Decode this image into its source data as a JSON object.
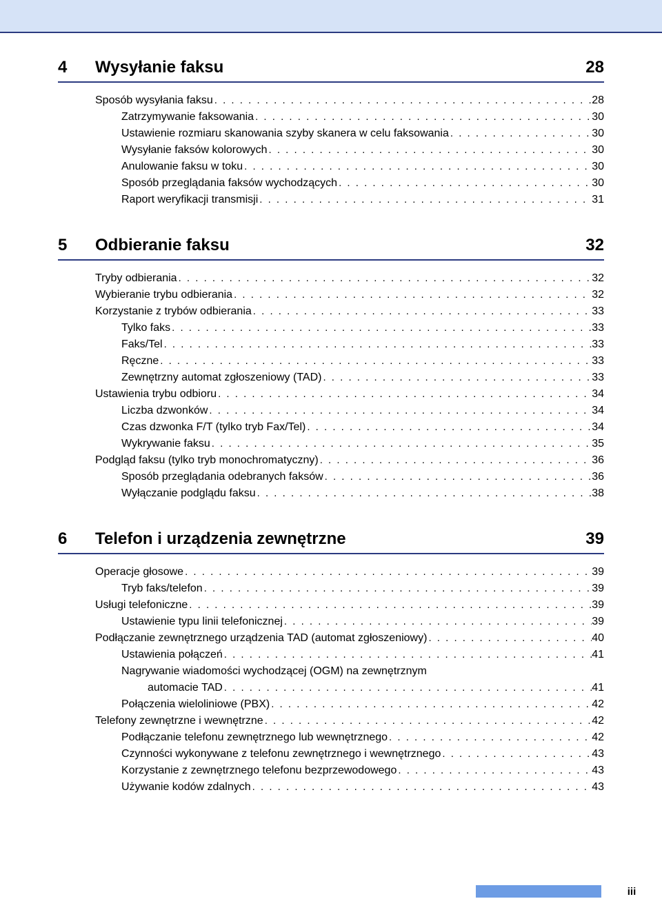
{
  "page_number": "iii",
  "sections": [
    {
      "number": "4",
      "title": "Wysyłanie faksu",
      "page": "28",
      "entries": [
        {
          "level": 0,
          "text": "Sposób wysyłania faksu",
          "page": "28"
        },
        {
          "level": 1,
          "text": "Zatrzymywanie faksowania",
          "page": "30"
        },
        {
          "level": 1,
          "text": "Ustawienie rozmiaru skanowania szyby skanera w celu faksowania",
          "page": "30"
        },
        {
          "level": 1,
          "text": "Wysyłanie faksów kolorowych",
          "page": "30"
        },
        {
          "level": 1,
          "text": "Anulowanie faksu w toku",
          "page": "30"
        },
        {
          "level": 1,
          "text": "Sposób przeglądania faksów wychodzących",
          "page": "30"
        },
        {
          "level": 1,
          "text": "Raport weryfikacji transmisji",
          "page": "31"
        }
      ]
    },
    {
      "number": "5",
      "title": "Odbieranie faksu",
      "page": "32",
      "entries": [
        {
          "level": 0,
          "text": "Tryby odbierania",
          "page": "32"
        },
        {
          "level": 0,
          "text": "Wybieranie trybu odbierania",
          "page": "32"
        },
        {
          "level": 0,
          "text": "Korzystanie z trybów odbierania",
          "page": "33"
        },
        {
          "level": 1,
          "text": "Tylko faks",
          "page": "33"
        },
        {
          "level": 1,
          "text": "Faks/Tel",
          "page": "33"
        },
        {
          "level": 1,
          "text": "Ręczne",
          "page": "33"
        },
        {
          "level": 1,
          "text": "Zewnętrzny automat zgłoszeniowy (TAD)",
          "page": "33"
        },
        {
          "level": 0,
          "text": "Ustawienia trybu odbioru",
          "page": "34"
        },
        {
          "level": 1,
          "text": "Liczba dzwonków",
          "page": "34"
        },
        {
          "level": 1,
          "text": "Czas dzwonka F/T (tylko tryb Fax/Tel)",
          "page": "34"
        },
        {
          "level": 1,
          "text": "Wykrywanie faksu",
          "page": "35"
        },
        {
          "level": 0,
          "text": "Podgląd faksu (tylko tryb monochromatyczny)",
          "page": "36"
        },
        {
          "level": 1,
          "text": "Sposób przeglądania odebranych faksów",
          "page": "36"
        },
        {
          "level": 1,
          "text": "Wyłączanie podglądu faksu",
          "page": "38"
        }
      ]
    },
    {
      "number": "6",
      "title": "Telefon i urządzenia zewnętrzne",
      "page": "39",
      "entries": [
        {
          "level": 0,
          "text": "Operacje głosowe",
          "page": "39"
        },
        {
          "level": 1,
          "text": "Tryb faks/telefon",
          "page": "39"
        },
        {
          "level": 0,
          "text": "Usługi telefoniczne",
          "page": "39"
        },
        {
          "level": 1,
          "text": "Ustawienie typu linii telefonicznej",
          "page": "39"
        },
        {
          "level": 0,
          "text": "Podłączanie zewnętrznego urządzenia TAD (automat zgłoszeniowy)",
          "page": "40"
        },
        {
          "level": 1,
          "text": "Ustawienia połączeń",
          "page": "41"
        },
        {
          "level": 1,
          "text": "Nagrywanie wiadomości wychodzącej (OGM) na zewnętrznym",
          "page": null
        },
        {
          "level": 2,
          "text": "automacie TAD",
          "page": "41"
        },
        {
          "level": 1,
          "text": "Połączenia wieloliniowe (PBX)",
          "page": "42"
        },
        {
          "level": 0,
          "text": "Telefony zewnętrzne i wewnętrzne",
          "page": "42"
        },
        {
          "level": 1,
          "text": "Podłączanie telefonu zewnętrznego lub wewnętrznego",
          "page": "42"
        },
        {
          "level": 1,
          "text": "Czynności wykonywane z telefonu zewnętrznego i wewnętrznego",
          "page": "43"
        },
        {
          "level": 1,
          "text": "Korzystanie z zewnętrznego telefonu bezprzewodowego",
          "page": "43"
        },
        {
          "level": 1,
          "text": "Używanie kodów zdalnych",
          "page": "43"
        }
      ]
    }
  ]
}
